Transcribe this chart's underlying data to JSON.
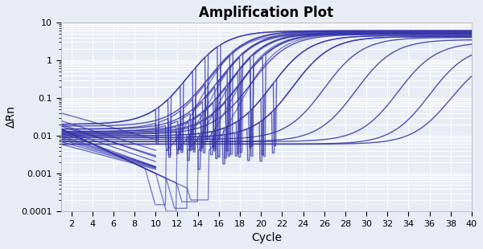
{
  "title": "Amplification Plot",
  "xlabel": "Cycle",
  "ylabel": "ΔRn",
  "xlim": [
    1,
    40
  ],
  "ylim": [
    0.0001,
    10
  ],
  "xticks": [
    2,
    4,
    6,
    8,
    10,
    12,
    14,
    16,
    18,
    20,
    22,
    24,
    26,
    28,
    30,
    32,
    34,
    36,
    38,
    40
  ],
  "line_color": "#3333aa",
  "background_color": "#e8ecf5",
  "grid_color": "#ffffff",
  "title_fontsize": 12,
  "label_fontsize": 10,
  "curves": [
    {
      "ct": 13,
      "baseline": 0.02,
      "plateau": 6.0,
      "slope": 0.55
    },
    {
      "ct": 15,
      "baseline": 0.018,
      "plateau": 6.0,
      "slope": 0.55
    },
    {
      "ct": 16,
      "baseline": 0.015,
      "plateau": 5.8,
      "slope": 0.55
    },
    {
      "ct": 17,
      "baseline": 0.013,
      "plateau": 5.5,
      "slope": 0.55
    },
    {
      "ct": 18,
      "baseline": 0.012,
      "plateau": 5.2,
      "slope": 0.55
    },
    {
      "ct": 19,
      "baseline": 0.011,
      "plateau": 4.8,
      "slope": 0.55
    },
    {
      "ct": 21,
      "baseline": 0.01,
      "plateau": 4.5,
      "slope": 0.55
    },
    {
      "ct": 23,
      "baseline": 0.009,
      "plateau": 4.2,
      "slope": 0.55
    },
    {
      "ct": 26,
      "baseline": 0.008,
      "plateau": 4.0,
      "slope": 0.55
    },
    {
      "ct": 29,
      "baseline": 0.007,
      "plateau": 3.5,
      "slope": 0.55
    },
    {
      "ct": 33,
      "baseline": 0.007,
      "plateau": 3.0,
      "slope": 0.55
    },
    {
      "ct": 36,
      "baseline": 0.006,
      "plateau": 2.5,
      "slope": 0.55
    },
    {
      "ct": 38,
      "baseline": 0.006,
      "plateau": 1.5,
      "slope": 0.55
    }
  ],
  "noisy_curves": [
    {
      "ct": 13,
      "baseline": 0.02,
      "plateau": 6.0,
      "slope": 0.55,
      "noise_range": [
        10,
        17
      ],
      "noise_amp": 0.6
    },
    {
      "ct": 15,
      "baseline": 0.015,
      "plateau": 5.8,
      "slope": 0.55,
      "noise_range": [
        10,
        18
      ],
      "noise_amp": 0.5
    },
    {
      "ct": 16,
      "baseline": 0.013,
      "plateau": 5.5,
      "slope": 0.55,
      "noise_range": [
        11,
        19
      ],
      "noise_amp": 0.7
    },
    {
      "ct": 17,
      "baseline": 0.012,
      "plateau": 5.2,
      "slope": 0.55,
      "noise_range": [
        12,
        20
      ],
      "noise_amp": 0.5
    },
    {
      "ct": 18,
      "baseline": 0.011,
      "plateau": 5.0,
      "slope": 0.55,
      "noise_range": [
        12,
        21
      ],
      "noise_amp": 0.4
    },
    {
      "ct": 21,
      "baseline": 0.01,
      "plateau": 4.5,
      "slope": 0.55,
      "noise_range": [
        13,
        22
      ],
      "noise_amp": 0.5
    },
    {
      "ct": 23,
      "baseline": 0.009,
      "plateau": 4.2,
      "slope": 0.55,
      "noise_range": [
        14,
        22
      ],
      "noise_amp": 0.6
    }
  ],
  "early_decays": [
    {
      "init": 0.04,
      "decay": 0.18
    },
    {
      "init": 0.025,
      "decay": 0.2
    },
    {
      "init": 0.02,
      "decay": 0.22
    },
    {
      "init": 0.018,
      "decay": 0.2
    },
    {
      "init": 0.015,
      "decay": 0.22
    },
    {
      "init": 0.012,
      "decay": 0.23
    },
    {
      "init": 0.01,
      "decay": 0.21
    },
    {
      "init": 0.009,
      "decay": 0.2
    },
    {
      "init": 0.008,
      "decay": 0.19
    },
    {
      "init": 0.007,
      "decay": 0.18
    },
    {
      "init": 0.006,
      "decay": 0.17
    }
  ],
  "dip_curves": [
    {
      "ct_dip": 11,
      "dip_depth": 0.00015
    },
    {
      "ct_dip": 12,
      "dip_depth": 0.0001
    },
    {
      "ct_dip": 13,
      "dip_depth": 0.00012
    },
    {
      "ct_dip": 14,
      "dip_depth": 0.00018
    },
    {
      "ct_dip": 15,
      "dip_depth": 0.0002
    }
  ],
  "ytick_vals": [
    0.0001,
    0.001,
    0.01,
    0.1,
    1,
    10
  ],
  "ytick_labels": [
    "0.0001",
    "0.001",
    "0.01",
    "0.1",
    "1",
    "10"
  ]
}
